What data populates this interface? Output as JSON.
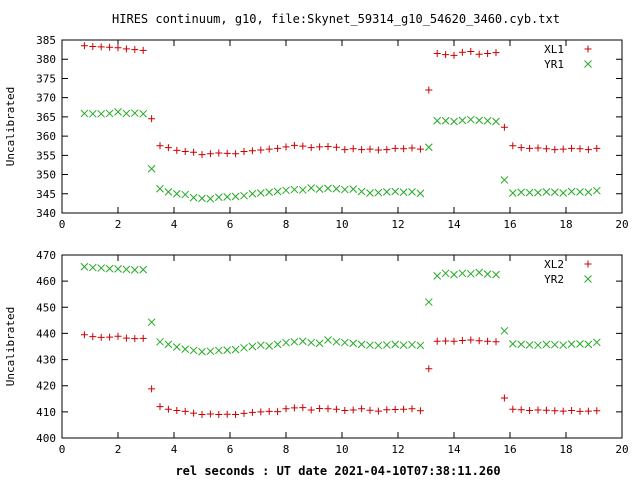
{
  "page": {
    "title": "HIRES continuum, g10, file:Skynet_59314_g10_54620_3460.cyb.txt",
    "xlabel": "rel seconds : UT date 2021-04-10T07:38:11.260"
  },
  "chart_data": [
    {
      "type": "scatter",
      "ylabel": "Uncalibrated",
      "xlim": [
        0,
        20
      ],
      "ylim": [
        340,
        385
      ],
      "xticks": [
        0,
        2,
        4,
        6,
        8,
        10,
        12,
        14,
        16,
        18,
        20
      ],
      "yticks": [
        340,
        345,
        350,
        355,
        360,
        365,
        370,
        375,
        380,
        385
      ],
      "grid": false,
      "legend_position": "top-right",
      "series": [
        {
          "name": "XL1",
          "marker": "plus",
          "color": "#cc0000",
          "x": [
            0.8,
            1.1,
            1.4,
            1.7,
            2.0,
            2.3,
            2.6,
            2.9,
            3.2,
            3.5,
            3.8,
            4.1,
            4.4,
            4.7,
            5.0,
            5.3,
            5.6,
            5.9,
            6.2,
            6.5,
            6.8,
            7.1,
            7.4,
            7.7,
            8.0,
            8.3,
            8.6,
            8.9,
            9.2,
            9.5,
            9.8,
            10.1,
            10.4,
            10.7,
            11.0,
            11.3,
            11.6,
            11.9,
            12.2,
            12.5,
            12.8,
            13.1,
            13.4,
            13.7,
            14.0,
            14.3,
            14.6,
            14.9,
            15.2,
            15.5,
            15.8,
            16.1,
            16.4,
            16.7,
            17.0,
            17.3,
            17.6,
            17.9,
            18.2,
            18.5,
            18.8,
            19.1
          ],
          "y": [
            383.5,
            383.3,
            383.2,
            383.1,
            383.0,
            382.7,
            382.5,
            382.3,
            364.5,
            357.5,
            357.0,
            356.3,
            356.0,
            355.8,
            355.2,
            355.4,
            355.6,
            355.5,
            355.4,
            356.0,
            356.2,
            356.4,
            356.6,
            356.8,
            357.2,
            357.6,
            357.4,
            357.0,
            357.2,
            357.3,
            357.1,
            356.5,
            356.7,
            356.5,
            356.6,
            356.4,
            356.5,
            356.8,
            356.7,
            356.9,
            356.6,
            372.0,
            381.5,
            381.2,
            381.0,
            381.8,
            382.0,
            381.3,
            381.5,
            381.7,
            362.3,
            357.5,
            357.0,
            356.8,
            356.9,
            356.7,
            356.5,
            356.6,
            356.8,
            356.7,
            356.5,
            356.8
          ]
        },
        {
          "name": "YR1",
          "marker": "cross",
          "color": "#22aa22",
          "x": [
            0.8,
            1.1,
            1.4,
            1.7,
            2.0,
            2.3,
            2.6,
            2.9,
            3.2,
            3.5,
            3.8,
            4.1,
            4.4,
            4.7,
            5.0,
            5.3,
            5.6,
            5.9,
            6.2,
            6.5,
            6.8,
            7.1,
            7.4,
            7.7,
            8.0,
            8.3,
            8.6,
            8.9,
            9.2,
            9.5,
            9.8,
            10.1,
            10.4,
            10.7,
            11.0,
            11.3,
            11.6,
            11.9,
            12.2,
            12.5,
            12.8,
            13.1,
            13.4,
            13.7,
            14.0,
            14.3,
            14.6,
            14.9,
            15.2,
            15.5,
            15.8,
            16.1,
            16.4,
            16.7,
            17.0,
            17.3,
            17.6,
            17.9,
            18.2,
            18.5,
            18.8,
            19.1
          ],
          "y": [
            365.9,
            365.8,
            365.8,
            365.9,
            366.3,
            365.9,
            366.0,
            365.8,
            351.5,
            346.3,
            345.5,
            345.0,
            344.8,
            344.0,
            343.8,
            343.7,
            344.1,
            344.2,
            344.3,
            344.5,
            345.0,
            345.2,
            345.4,
            345.6,
            345.9,
            346.1,
            346.0,
            346.5,
            346.2,
            346.4,
            346.3,
            346.1,
            346.2,
            345.6,
            345.2,
            345.3,
            345.5,
            345.6,
            345.4,
            345.5,
            345.1,
            357.1,
            364.0,
            364.0,
            363.8,
            364.1,
            364.3,
            364.1,
            364.0,
            363.8,
            348.6,
            345.2,
            345.4,
            345.3,
            345.3,
            345.5,
            345.4,
            345.2,
            345.6,
            345.5,
            345.4,
            345.8
          ]
        }
      ]
    },
    {
      "type": "scatter",
      "ylabel": "Uncalibrated",
      "xlim": [
        0,
        20
      ],
      "ylim": [
        400,
        470
      ],
      "xticks": [
        0,
        2,
        4,
        6,
        8,
        10,
        12,
        14,
        16,
        18,
        20
      ],
      "yticks": [
        400,
        410,
        420,
        430,
        440,
        450,
        460,
        470
      ],
      "grid": false,
      "legend_position": "top-right",
      "series": [
        {
          "name": "XL2",
          "marker": "plus",
          "color": "#cc0000",
          "x": [
            0.8,
            1.1,
            1.4,
            1.7,
            2.0,
            2.3,
            2.6,
            2.9,
            3.2,
            3.5,
            3.8,
            4.1,
            4.4,
            4.7,
            5.0,
            5.3,
            5.6,
            5.9,
            6.2,
            6.5,
            6.8,
            7.1,
            7.4,
            7.7,
            8.0,
            8.3,
            8.6,
            8.9,
            9.2,
            9.5,
            9.8,
            10.1,
            10.4,
            10.7,
            11.0,
            11.3,
            11.6,
            11.9,
            12.2,
            12.5,
            12.8,
            13.1,
            13.4,
            13.7,
            14.0,
            14.3,
            14.6,
            14.9,
            15.2,
            15.5,
            15.8,
            16.1,
            16.4,
            16.7,
            17.0,
            17.3,
            17.6,
            17.9,
            18.2,
            18.5,
            18.8,
            19.1
          ],
          "y": [
            439.5,
            438.8,
            438.5,
            438.6,
            438.9,
            438.2,
            438.0,
            438.1,
            418.8,
            412.0,
            411.0,
            410.5,
            410.2,
            409.5,
            409.0,
            409.2,
            409.0,
            409.1,
            409.0,
            409.4,
            409.8,
            410.0,
            410.2,
            410.1,
            411.2,
            411.5,
            411.6,
            410.7,
            411.3,
            411.2,
            411.0,
            410.5,
            410.7,
            411.2,
            410.6,
            410.3,
            410.8,
            410.9,
            411.0,
            411.2,
            410.4,
            426.5,
            437.0,
            437.1,
            437.0,
            437.3,
            437.5,
            437.2,
            437.0,
            436.8,
            415.3,
            411.0,
            410.8,
            410.5,
            410.7,
            410.6,
            410.4,
            410.3,
            410.5,
            410.2,
            410.3,
            410.4
          ]
        },
        {
          "name": "YR2",
          "marker": "cross",
          "color": "#22aa22",
          "x": [
            0.8,
            1.1,
            1.4,
            1.7,
            2.0,
            2.3,
            2.6,
            2.9,
            3.2,
            3.5,
            3.8,
            4.1,
            4.4,
            4.7,
            5.0,
            5.3,
            5.6,
            5.9,
            6.2,
            6.5,
            6.8,
            7.1,
            7.4,
            7.7,
            8.0,
            8.3,
            8.6,
            8.9,
            9.2,
            9.5,
            9.8,
            10.1,
            10.4,
            10.7,
            11.0,
            11.3,
            11.6,
            11.9,
            12.2,
            12.5,
            12.8,
            13.1,
            13.4,
            13.7,
            14.0,
            14.3,
            14.6,
            14.9,
            15.2,
            15.5,
            15.8,
            16.1,
            16.4,
            16.7,
            17.0,
            17.3,
            17.6,
            17.9,
            18.2,
            18.5,
            18.8,
            19.1
          ],
          "y": [
            465.5,
            465.2,
            465.0,
            464.8,
            464.7,
            464.5,
            464.3,
            464.4,
            444.3,
            436.8,
            435.8,
            434.8,
            434.0,
            433.5,
            433.0,
            433.2,
            433.5,
            433.6,
            433.8,
            434.5,
            435.0,
            435.5,
            435.2,
            435.8,
            436.5,
            436.8,
            437.0,
            436.5,
            436.2,
            437.5,
            436.8,
            436.5,
            436.2,
            435.8,
            435.5,
            435.4,
            435.6,
            435.8,
            435.5,
            435.7,
            435.4,
            452.0,
            462.0,
            463.0,
            462.5,
            463.0,
            462.8,
            463.3,
            462.7,
            462.5,
            441.0,
            436.0,
            435.8,
            435.6,
            435.5,
            435.8,
            435.7,
            435.5,
            435.9,
            436.0,
            435.8,
            436.6
          ]
        }
      ]
    }
  ]
}
